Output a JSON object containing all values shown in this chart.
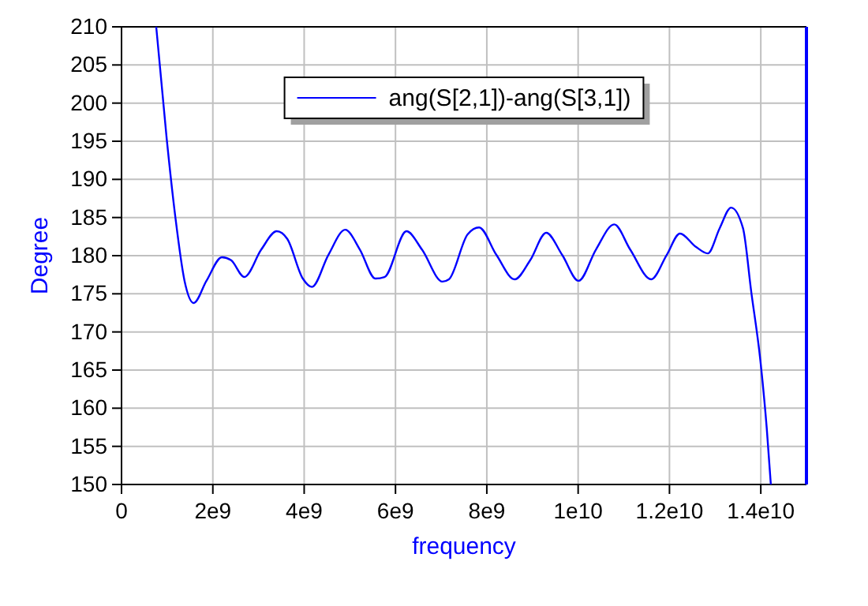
{
  "chart_data": {
    "type": "line",
    "xlabel": "frequency",
    "ylabel": "Degree",
    "xlim": [
      0,
      15000000000
    ],
    "xticks": [
      {
        "value": 0,
        "label": "0"
      },
      {
        "value": 2000000000,
        "label": "2e9"
      },
      {
        "value": 4000000000,
        "label": "4e9"
      },
      {
        "value": 6000000000,
        "label": "6e9"
      },
      {
        "value": 8000000000,
        "label": "8e9"
      },
      {
        "value": 10000000000,
        "label": "1e10"
      },
      {
        "value": 12000000000,
        "label": "1.2e10"
      },
      {
        "value": 14000000000,
        "label": "1.4e10"
      }
    ],
    "ylim": [
      150,
      210
    ],
    "yticks": [
      150,
      155,
      160,
      165,
      170,
      175,
      180,
      185,
      190,
      195,
      200,
      205,
      210
    ],
    "grid": true,
    "legend": "top",
    "marker": "none",
    "line_style": "solid",
    "series": [
      {
        "name": "ang(S[2,1])-ang(S[3,1])",
        "color": "#0000ff",
        "x": [
          760000000,
          990000000,
          1180000000,
          1380000000,
          1580000000,
          1860000000,
          2200000000,
          2400000000,
          2690000000,
          3060000000,
          3400000000,
          3630000000,
          3970000000,
          4170000000,
          4530000000,
          4900000000,
          5220000000,
          5560000000,
          5760000000,
          6240000000,
          6580000000,
          7030000000,
          7170000000,
          7580000000,
          7830000000,
          8210000000,
          8610000000,
          8950000000,
          9300000000,
          9650000000,
          10010000000,
          10390000000,
          10790000000,
          11140000000,
          11600000000,
          11940000000,
          12230000000,
          12570000000,
          12840000000,
          13100000000,
          13350000000,
          13610000000,
          13790000000,
          13990000000,
          14130000000,
          14220000000
        ],
        "values": [
          210,
          195.3,
          185,
          176.7,
          173.8,
          176.7,
          179.8,
          179.4,
          177.2,
          180.8,
          183.2,
          182.2,
          177,
          175.9,
          180.1,
          183.4,
          180.8,
          177,
          177.2,
          183.2,
          180.8,
          176.6,
          176.9,
          182.8,
          183.7,
          180.1,
          176.9,
          179.4,
          183,
          180.1,
          176.7,
          180.8,
          184.1,
          180.8,
          176.9,
          180.1,
          182.9,
          181.2,
          180.3,
          183.6,
          186.3,
          183.6,
          175.3,
          166.3,
          157.4,
          150
        ]
      }
    ]
  }
}
